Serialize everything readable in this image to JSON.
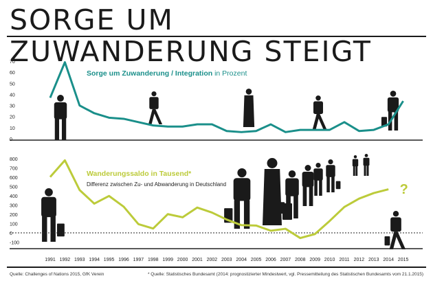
{
  "title": "SORGE UM ZUWANDERUNG STEIGT",
  "footer": {
    "source_left": "Quelle: Challenges of Nations 2015, GfK Verein",
    "source_right": "* Quelle: Statistisches Bundesamt (2014: prognostizierter Mindestwert, vgl. Pressemitteilung des Statistischen Bundesamts vom 21.1.2015)"
  },
  "colors": {
    "concern_line": "#1a8f8a",
    "migration_line": "#bccb3a",
    "axis": "#222222",
    "grid": "#222222",
    "figures": "#1a1a1a"
  },
  "chart_data": [
    {
      "type": "line",
      "title": "Sorge um Zuwanderung / Integration",
      "title_suffix": "in Prozent",
      "x": [
        "1991",
        "1992",
        "1993",
        "1994",
        "1995",
        "1996",
        "1997",
        "1998",
        "1999",
        "2000",
        "2001",
        "2002",
        "2003",
        "2004",
        "2005",
        "2006",
        "2007",
        "2008",
        "2009",
        "2010",
        "2011",
        "2012",
        "2013",
        "2014",
        "2015"
      ],
      "series": [
        {
          "values": [
            37,
            69,
            30,
            23,
            19,
            18,
            15,
            12,
            11,
            11,
            13,
            13,
            7,
            6,
            7,
            13,
            6,
            8,
            8,
            8,
            15,
            7,
            8,
            13,
            34
          ]
        }
      ],
      "ylim": [
        0,
        70
      ],
      "yticks": [
        0,
        10,
        20,
        30,
        40,
        50,
        60,
        70
      ],
      "grid": false
    },
    {
      "type": "line",
      "title": "Wanderungssaldo in Tausend*",
      "subtitle": "Differenz zwischen Zu- und Abwanderung in Deutschland",
      "x": [
        "1991",
        "1992",
        "1993",
        "1994",
        "1995",
        "1996",
        "1997",
        "1998",
        "1999",
        "2000",
        "2001",
        "2002",
        "2003",
        "2004",
        "2005",
        "2006",
        "2007",
        "2008",
        "2009",
        "2010",
        "2011",
        "2012",
        "2013",
        "2014",
        "2015"
      ],
      "series": [
        {
          "values": [
            603,
            782,
            462,
            315,
            398,
            282,
            94,
            47,
            202,
            168,
            273,
            219,
            143,
            83,
            79,
            23,
            44,
            -56,
            -13,
            128,
            279,
            369,
            429,
            470,
            null
          ]
        }
      ],
      "annotation": "?",
      "ylim": [
        -100,
        800
      ],
      "yticks": [
        -100,
        0,
        100,
        200,
        300,
        400,
        500,
        600,
        700,
        800
      ],
      "ytick_labels": [
        "-100",
        "0",
        "100",
        "200",
        "300",
        "400",
        "500",
        "600",
        "700",
        "800"
      ],
      "grid": false
    }
  ]
}
